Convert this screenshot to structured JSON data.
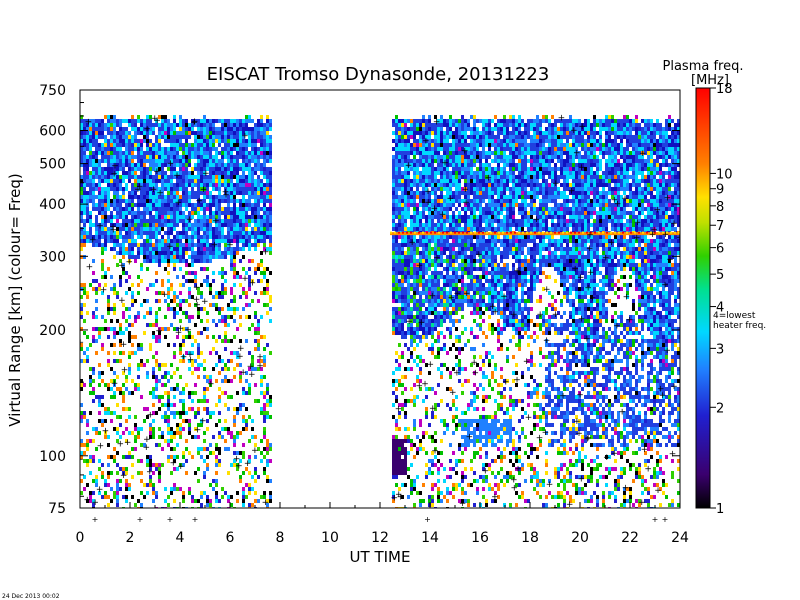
{
  "chart_data": {
    "type": "heatmap",
    "title": "EISCAT Tromso Dynasonde,  20131223",
    "xlabel": "UT TIME",
    "ylabel": "Virtual Range [km]   (colour= Freq)",
    "x_ticks": [
      0,
      2,
      4,
      6,
      8,
      10,
      12,
      14,
      16,
      18,
      20,
      22,
      24
    ],
    "xlim": [
      0,
      24
    ],
    "y_scale": "log",
    "y_ticks": [
      75,
      100,
      200,
      300,
      400,
      500,
      600,
      750
    ],
    "ylim": [
      75,
      750
    ],
    "colorbar": {
      "title": "Plasma freq.",
      "unit": "[MHz]",
      "scale": "log",
      "range": [
        1,
        18
      ],
      "ticks": [
        1,
        2,
        3,
        4,
        5,
        6,
        7,
        8,
        9,
        10,
        18
      ],
      "annotation": "4=lowest heater freq.",
      "annotation_lines": [
        "4=lowest",
        "heater freq."
      ],
      "colors": [
        "#000000",
        "#3a006e",
        "#2020d0",
        "#2080ff",
        "#00d8ff",
        "#00e090",
        "#30d000",
        "#c0e000",
        "#ffe000",
        "#ff8000",
        "#ff0000"
      ]
    },
    "data_gaps": [
      [
        7.6,
        12.4
      ]
    ],
    "heater_line": {
      "range_km": 340,
      "time_span": [
        12.4,
        24
      ],
      "color": "#ff8c00"
    },
    "plus_marks_x": [
      0.6,
      2.4,
      3.6,
      4.6,
      13.9,
      23.0,
      23.4
    ]
  },
  "footer": {
    "timestamp": "24 Dec 2013 00:02"
  }
}
